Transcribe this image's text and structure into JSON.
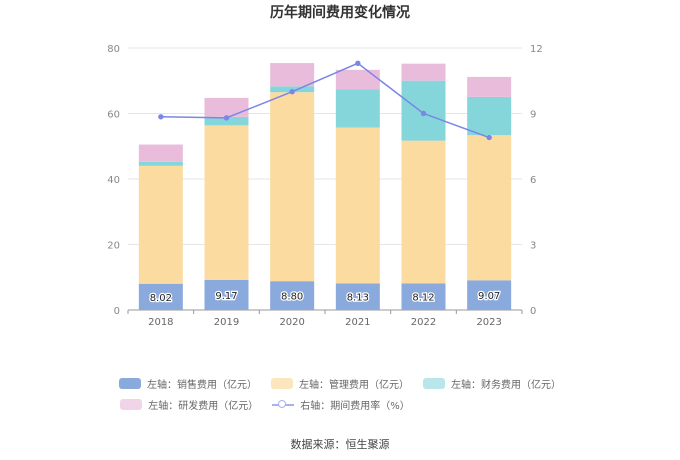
{
  "title": "历年期间费用变化情况",
  "source": "数据来源：恒生聚源",
  "chart_data": {
    "type": "bar",
    "stacked": true,
    "title": "历年期间费用变化情况",
    "categories": [
      "2018",
      "2019",
      "2020",
      "2021",
      "2022",
      "2023"
    ],
    "left_axis": {
      "min": 0,
      "max": 80,
      "ticks": [
        "0",
        "20",
        "40",
        "60",
        "80"
      ]
    },
    "right_axis": {
      "min": 0,
      "max": 12,
      "ticks": [
        "0",
        "3",
        "6",
        "9",
        "12"
      ]
    },
    "series": [
      {
        "name": "左轴：销售费用（亿元）",
        "axis": "left",
        "kind": "bar",
        "color": "#8aa9dc",
        "values": [
          8.02,
          9.17,
          8.8,
          8.13,
          8.12,
          9.07
        ],
        "labels": [
          "8.02",
          "9.17",
          "8.80",
          "8.13",
          "8.12",
          "9.07"
        ]
      },
      {
        "name": "左轴：管理费用（亿元）",
        "axis": "left",
        "kind": "bar",
        "color": "#fcdba0",
        "values": [
          36.0,
          47.2,
          57.7,
          47.6,
          43.6,
          44.3
        ]
      },
      {
        "name": "左轴：财务费用（亿元）",
        "axis": "left",
        "kind": "bar",
        "color": "#85d6da",
        "values": [
          1.2,
          2.6,
          1.8,
          11.6,
          18.3,
          11.7
        ]
      },
      {
        "name": "左轴：研发费用（亿元）",
        "axis": "left",
        "kind": "bar",
        "color": "#e9bcdb",
        "values": [
          5.3,
          5.8,
          7.1,
          6.0,
          5.2,
          6.1
        ]
      },
      {
        "name": "右轴：期间费用率（%）",
        "axis": "right",
        "kind": "line",
        "color": "#7b86e6",
        "values": [
          8.85,
          8.8,
          10.0,
          11.3,
          9.0,
          7.9
        ]
      }
    ]
  }
}
